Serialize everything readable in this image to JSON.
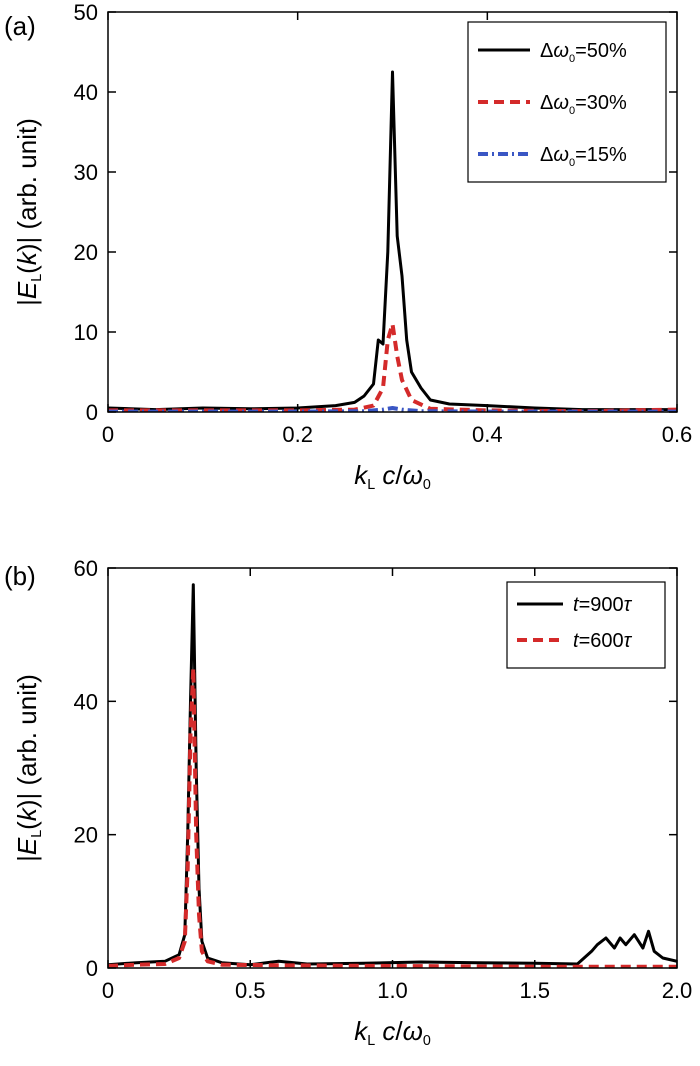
{
  "chart_data": [
    {
      "panel": "(a)",
      "type": "line",
      "xlabel": "k_L c/ω_0",
      "ylabel": "|E_L(k)| (arb. unit)",
      "xlim": [
        0,
        0.6
      ],
      "ylim": [
        0,
        50
      ],
      "xticks": [
        "0",
        "0.2",
        "0.4",
        "0.6"
      ],
      "yticks": [
        "0",
        "10",
        "20",
        "30",
        "40",
        "50"
      ],
      "legend_position": "top-right",
      "series": [
        {
          "name": "Δω0=50%",
          "color": "#000000",
          "style": "solid",
          "x": [
            0,
            0.05,
            0.1,
            0.15,
            0.2,
            0.24,
            0.26,
            0.27,
            0.28,
            0.285,
            0.29,
            0.295,
            0.3,
            0.305,
            0.31,
            0.315,
            0.32,
            0.33,
            0.34,
            0.36,
            0.4,
            0.45,
            0.5,
            0.55,
            0.6
          ],
          "values": [
            0.5,
            0.3,
            0.5,
            0.4,
            0.5,
            0.8,
            1.2,
            2.0,
            3.5,
            9.0,
            8.5,
            20.0,
            42.5,
            22.0,
            17.0,
            9.0,
            5.0,
            3.0,
            1.5,
            1.0,
            0.8,
            0.5,
            0.3,
            0.3,
            0.3
          ]
        },
        {
          "name": "Δω0=30%",
          "color": "#d42a2a",
          "style": "dashed",
          "x": [
            0,
            0.1,
            0.2,
            0.26,
            0.28,
            0.29,
            0.295,
            0.3,
            0.305,
            0.31,
            0.32,
            0.34,
            0.4,
            0.5,
            0.6
          ],
          "values": [
            0.2,
            0.2,
            0.2,
            0.3,
            0.8,
            3.0,
            9.0,
            11.0,
            7.0,
            4.0,
            1.5,
            0.4,
            0.2,
            0.1,
            0.3
          ]
        },
        {
          "name": "Δω0=15%",
          "color": "#3a56c4",
          "style": "dashdot",
          "x": [
            0,
            0.1,
            0.2,
            0.27,
            0.29,
            0.3,
            0.31,
            0.33,
            0.4,
            0.5,
            0.6
          ],
          "values": [
            0.05,
            0.05,
            0.05,
            0.1,
            0.3,
            0.5,
            0.3,
            0.1,
            0.05,
            0.05,
            0.05
          ]
        }
      ]
    },
    {
      "panel": "(b)",
      "type": "line",
      "xlabel": "k_L c/ω_0",
      "ylabel": "|E_L(k)| (arb. unit)",
      "xlim": [
        0,
        2.0
      ],
      "ylim": [
        0,
        60
      ],
      "xticks": [
        "0",
        "0.5",
        "1.0",
        "1.5",
        "2.0"
      ],
      "yticks": [
        "0",
        "20",
        "40",
        "60"
      ],
      "legend_position": "top-right",
      "series": [
        {
          "name": "t=900τ",
          "color": "#000000",
          "style": "solid",
          "x": [
            0,
            0.1,
            0.2,
            0.25,
            0.27,
            0.28,
            0.29,
            0.3,
            0.31,
            0.32,
            0.33,
            0.35,
            0.4,
            0.5,
            0.6,
            0.7,
            0.9,
            1.1,
            1.3,
            1.5,
            1.65,
            1.7,
            1.72,
            1.75,
            1.78,
            1.8,
            1.82,
            1.85,
            1.88,
            1.9,
            1.92,
            1.95,
            2.0
          ],
          "values": [
            0.5,
            0.8,
            1.0,
            2.0,
            5.0,
            20.0,
            40.0,
            57.5,
            30.0,
            12.0,
            4.0,
            1.5,
            0.8,
            0.5,
            1.0,
            0.6,
            0.7,
            0.9,
            0.8,
            0.7,
            0.6,
            2.5,
            3.5,
            4.5,
            3.0,
            4.5,
            3.5,
            5.0,
            3.0,
            5.5,
            2.5,
            1.5,
            1.0
          ]
        },
        {
          "name": "t=600τ",
          "color": "#d42a2a",
          "style": "dashed",
          "x": [
            0,
            0.1,
            0.2,
            0.25,
            0.27,
            0.28,
            0.29,
            0.3,
            0.31,
            0.32,
            0.33,
            0.35,
            0.4,
            0.6,
            1.0,
            1.5,
            2.0
          ],
          "values": [
            0.3,
            0.5,
            0.6,
            1.5,
            4.0,
            15.0,
            35.0,
            45.0,
            20.0,
            8.0,
            2.5,
            1.0,
            0.5,
            0.4,
            0.3,
            0.2,
            0.2
          ]
        }
      ]
    }
  ]
}
